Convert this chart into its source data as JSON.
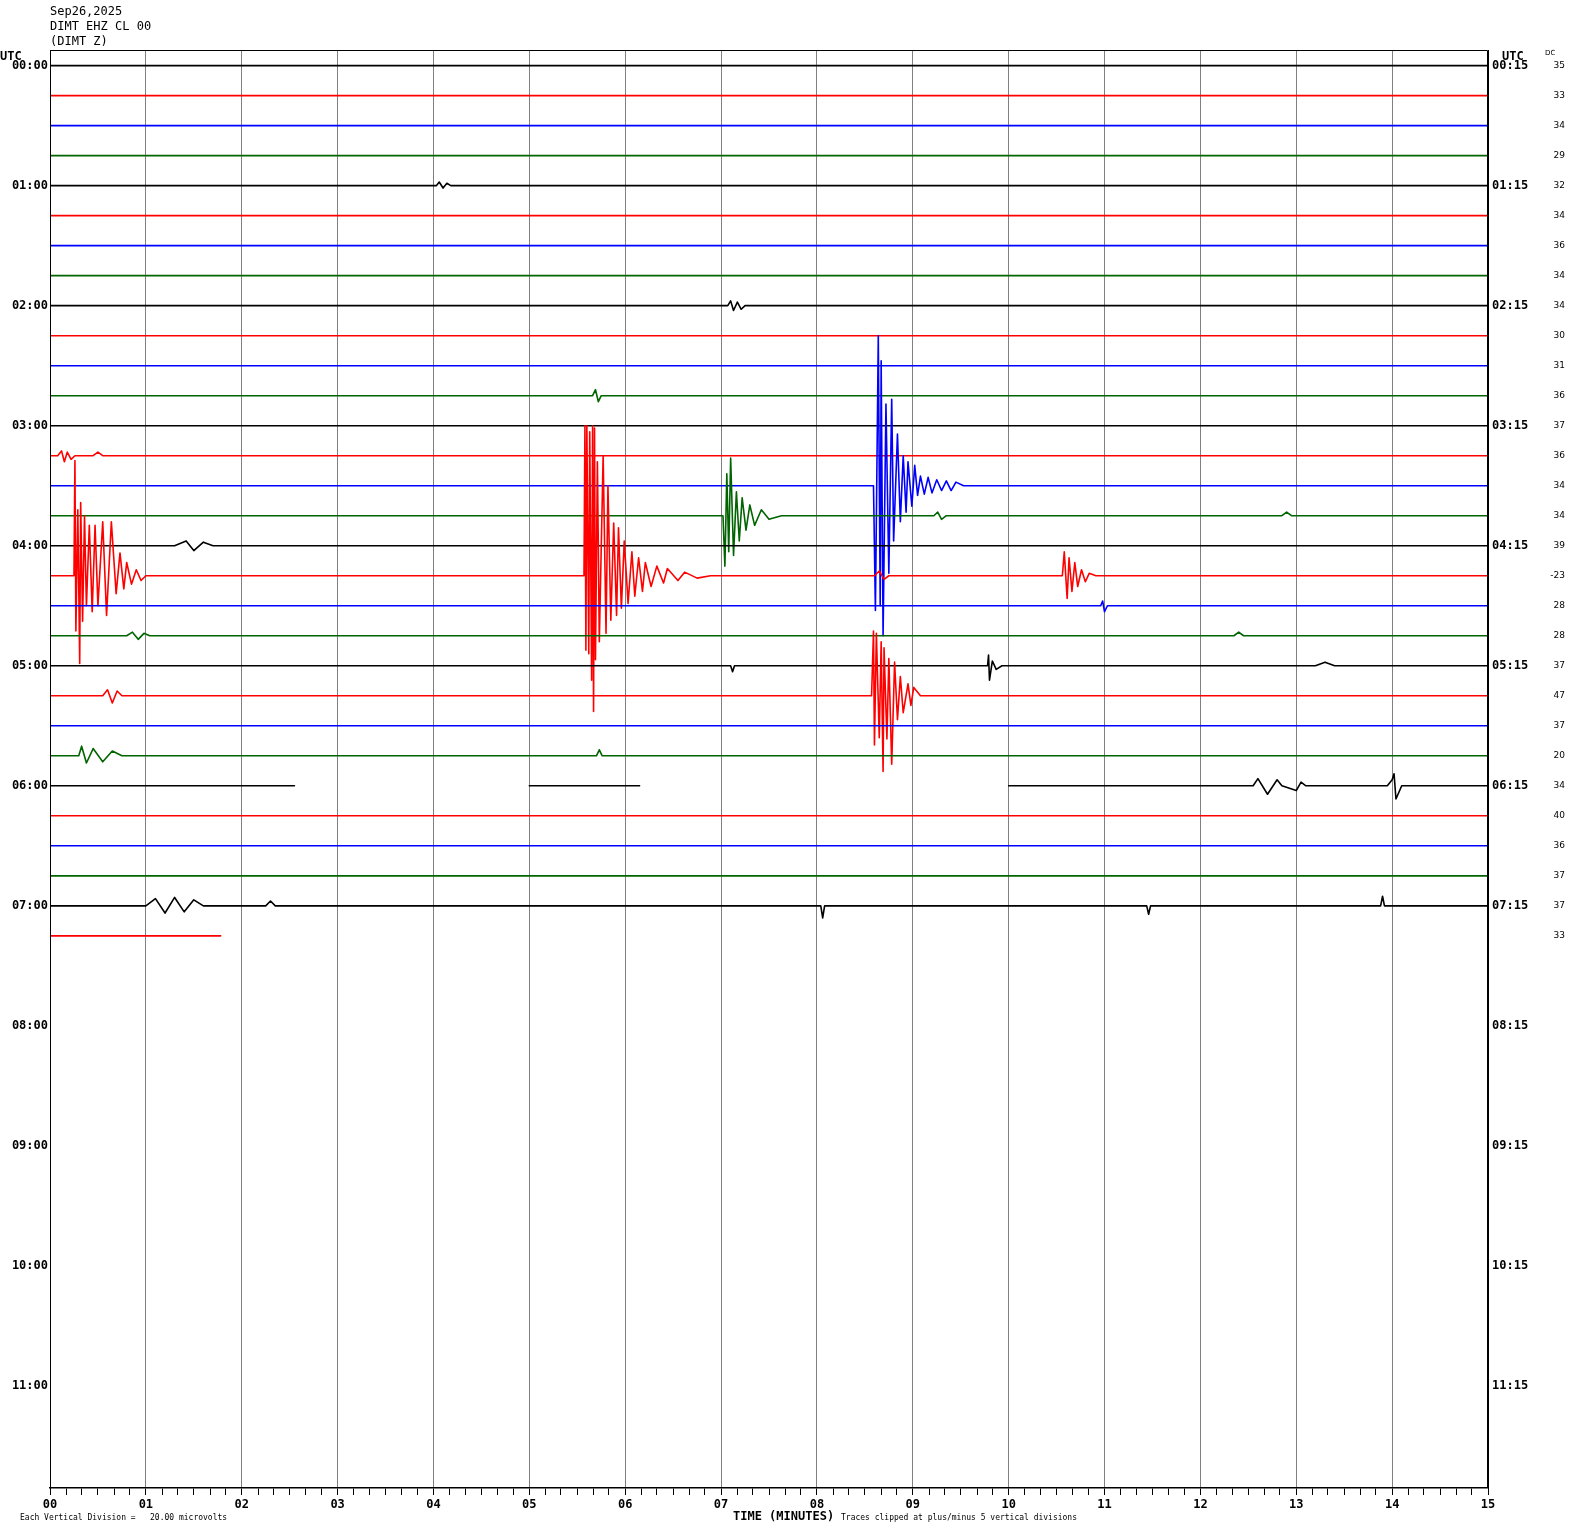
{
  "chart_data": {
    "type": "line",
    "title": "Sep26,2025",
    "subtitle": "DIMT EHZ CL 00",
    "annotations": [
      "(DIMT Z)",
      "Each Vertical Division =   20.00 microvolts",
      "Traces clipped at plus/minus 5 vertical divisions",
      "DC",
      "35",
      "33",
      "34",
      "29",
      "32",
      "34",
      "36",
      "34",
      "34",
      "30",
      "31",
      "36",
      "37",
      "36",
      "34",
      "34",
      "39",
      "-23",
      "28",
      "28",
      "37",
      "47",
      "37",
      "20",
      "34",
      "40",
      "36",
      "37",
      "37",
      "33"
    ],
    "xlabel": "TIME (MINUTES)",
    "ylabel": "UTC",
    "y2label": "UTC",
    "xlim": [
      0,
      15
    ],
    "xticks": [
      {
        "value": 0,
        "label": "00"
      },
      {
        "value": 0.17,
        "label": null
      },
      {
        "value": 0.33,
        "label": null
      },
      {
        "value": 0.5,
        "label": null
      },
      {
        "value": 0.67,
        "label": null
      },
      {
        "value": 0.83,
        "label": null
      },
      {
        "value": 1,
        "label": "01"
      },
      {
        "value": 1.17,
        "label": null
      },
      {
        "value": 1.33,
        "label": null
      },
      {
        "value": 1.5,
        "label": null
      },
      {
        "value": 1.67,
        "label": null
      },
      {
        "value": 1.83,
        "label": null
      },
      {
        "value": 2,
        "label": "02"
      },
      {
        "value": 2.17,
        "label": null
      },
      {
        "value": 2.33,
        "label": null
      },
      {
        "value": 2.5,
        "label": null
      },
      {
        "value": 2.67,
        "label": null
      },
      {
        "value": 2.83,
        "label": null
      },
      {
        "value": 3,
        "label": "03"
      },
      {
        "value": 3.17,
        "label": null
      },
      {
        "value": 3.33,
        "label": null
      },
      {
        "value": 3.5,
        "label": null
      },
      {
        "value": 3.67,
        "label": null
      },
      {
        "value": 3.83,
        "label": null
      },
      {
        "value": 4,
        "label": "04"
      },
      {
        "value": 4.17,
        "label": null
      },
      {
        "value": 4.33,
        "label": null
      },
      {
        "value": 4.5,
        "label": null
      },
      {
        "value": 4.67,
        "label": null
      },
      {
        "value": 4.83,
        "label": null
      },
      {
        "value": 5,
        "label": "05"
      },
      {
        "value": 5.17,
        "label": null
      },
      {
        "value": 5.33,
        "label": null
      },
      {
        "value": 5.5,
        "label": null
      },
      {
        "value": 5.67,
        "label": null
      },
      {
        "value": 5.83,
        "label": null
      },
      {
        "value": 6,
        "label": "06"
      },
      {
        "value": 6.17,
        "label": null
      },
      {
        "value": 6.33,
        "label": null
      },
      {
        "value": 6.5,
        "label": null
      },
      {
        "value": 6.67,
        "label": null
      },
      {
        "value": 6.83,
        "label": null
      },
      {
        "value": 7,
        "label": "07"
      },
      {
        "value": 7.17,
        "label": null
      },
      {
        "value": 7.33,
        "label": null
      },
      {
        "value": 7.5,
        "label": null
      },
      {
        "value": 7.67,
        "label": null
      },
      {
        "value": 7.83,
        "label": null
      },
      {
        "value": 8,
        "label": "08"
      },
      {
        "value": 8.17,
        "label": null
      },
      {
        "value": 8.33,
        "label": null
      },
      {
        "value": 8.5,
        "label": null
      },
      {
        "value": 8.67,
        "label": null
      },
      {
        "value": 8.83,
        "label": null
      },
      {
        "value": 9,
        "label": "09"
      },
      {
        "value": 9.17,
        "label": null
      },
      {
        "value": 9.33,
        "label": null
      },
      {
        "value": 9.5,
        "label": null
      },
      {
        "value": 9.67,
        "label": null
      },
      {
        "value": 9.83,
        "label": null
      },
      {
        "value": 10,
        "label": "10"
      },
      {
        "value": 10.17,
        "label": null
      },
      {
        "value": 10.33,
        "label": null
      },
      {
        "value": 10.5,
        "label": null
      },
      {
        "value": 10.67,
        "label": null
      },
      {
        "value": 10.83,
        "label": null
      },
      {
        "value": 11,
        "label": "11"
      },
      {
        "value": 11.17,
        "label": null
      },
      {
        "value": 11.33,
        "label": null
      },
      {
        "value": 11.5,
        "label": null
      },
      {
        "value": 11.67,
        "label": null
      },
      {
        "value": 11.83,
        "label": null
      },
      {
        "value": 12,
        "label": "12"
      },
      {
        "value": 12.17,
        "label": null
      },
      {
        "value": 12.33,
        "label": null
      },
      {
        "value": 12.5,
        "label": null
      },
      {
        "value": 12.67,
        "label": null
      },
      {
        "value": 12.83,
        "label": null
      },
      {
        "value": 13,
        "label": "13"
      },
      {
        "value": 13.17,
        "label": null
      },
      {
        "value": 13.33,
        "label": null
      },
      {
        "value": 13.5,
        "label": null
      },
      {
        "value": 13.67,
        "label": null
      },
      {
        "value": 13.83,
        "label": null
      },
      {
        "value": 14,
        "label": "14"
      },
      {
        "value": 14.17,
        "label": null
      },
      {
        "value": 14.33,
        "label": null
      },
      {
        "value": 14.5,
        "label": null
      },
      {
        "value": 14.67,
        "label": null
      },
      {
        "value": 14.83,
        "label": null
      },
      {
        "value": 15,
        "label": "15"
      }
    ],
    "ylim": [
      11.85,
      -0.13
    ],
    "yticks": [
      {
        "value": 0,
        "label": "00:00"
      },
      {
        "value": 1,
        "label": "01:00"
      },
      {
        "value": 2,
        "label": "02:00"
      },
      {
        "value": 3,
        "label": "03:00"
      },
      {
        "value": 4,
        "label": "04:00"
      },
      {
        "value": 5,
        "label": "05:00"
      },
      {
        "value": 6,
        "label": "06:00"
      },
      {
        "value": 7,
        "label": "07:00"
      },
      {
        "value": 8,
        "label": "08:00"
      },
      {
        "value": 9,
        "label": "09:00"
      },
      {
        "value": 10,
        "label": "10:00"
      },
      {
        "value": 11,
        "label": "11:00"
      }
    ],
    "y2lim": [
      12.1,
      0.12
    ],
    "y2ticks": [
      {
        "value": 0.25,
        "label": "00:15"
      },
      {
        "value": 1.25,
        "label": "01:15"
      },
      {
        "value": 2.25,
        "label": "02:15"
      },
      {
        "value": 3.25,
        "label": "03:15"
      },
      {
        "value": 4.25,
        "label": "04:15"
      },
      {
        "value": 5.25,
        "label": "05:15"
      },
      {
        "value": 6.25,
        "label": "06:15"
      },
      {
        "value": 7.25,
        "label": "07:15"
      },
      {
        "value": 8.25,
        "label": "08:15"
      },
      {
        "value": 9.25,
        "label": "09:15"
      },
      {
        "value": 10.25,
        "label": "10:15"
      },
      {
        "value": 11.25,
        "label": "11:15"
      }
    ],
    "grid": "x",
    "marker": "none",
    "line_style": "solid",
    "series": [
      {
        "color": "#000000",
        "x": [
          0,
          15
        ],
        "values": [
          0,
          0
        ]
      },
      {
        "color": "#ff0000",
        "x": [
          0,
          15
        ],
        "values": [
          0.25,
          0.25
        ]
      },
      {
        "color": "#0000ff",
        "x": [
          0,
          15
        ],
        "values": [
          0.5,
          0.5
        ]
      },
      {
        "color": "#006400",
        "x": [
          0,
          15
        ],
        "values": [
          0.75,
          0.75
        ]
      },
      {
        "color": "#000000",
        "x": [
          0,
          4.03,
          4.06,
          4.1,
          4.14,
          4.18,
          15
        ],
        "values": [
          1,
          1,
          0.97,
          1.02,
          0.98,
          1,
          1
        ]
      },
      {
        "color": "#ff0000",
        "x": [
          0,
          15
        ],
        "values": [
          1.25,
          1.25
        ]
      },
      {
        "color": "#0000ff",
        "x": [
          0,
          15
        ],
        "values": [
          1.5,
          1.5
        ]
      },
      {
        "color": "#006400",
        "x": [
          0,
          15
        ],
        "values": [
          1.75,
          1.75
        ]
      },
      {
        "color": "#000000",
        "x": [
          0,
          7.07,
          7.1,
          7.13,
          7.17,
          7.21,
          7.25,
          15
        ],
        "values": [
          2,
          2,
          1.96,
          2.04,
          1.97,
          2.03,
          2,
          2
        ]
      },
      {
        "color": "#ff0000",
        "x": [
          0,
          15
        ],
        "values": [
          2.25,
          2.25
        ]
      },
      {
        "color": "#0000ff",
        "x": [
          0,
          15
        ],
        "values": [
          2.5,
          2.5
        ]
      },
      {
        "color": "#006400",
        "x": [
          0,
          5.66,
          5.69,
          5.72,
          5.75,
          15
        ],
        "values": [
          2.75,
          2.75,
          2.7,
          2.8,
          2.75,
          2.75
        ]
      },
      {
        "color": "#000000",
        "x": [
          0,
          15
        ],
        "values": [
          3,
          3
        ]
      },
      {
        "color": "#ff0000",
        "x": [
          0,
          0.08,
          0.12,
          0.15,
          0.18,
          0.22,
          0.26,
          0.45,
          0.5,
          0.55,
          15
        ],
        "values": [
          3.25,
          3.25,
          3.21,
          3.3,
          3.22,
          3.28,
          3.25,
          3.25,
          3.22,
          3.25,
          3.25
        ]
      },
      {
        "color": "#0000ff",
        "x": [
          0,
          8.59,
          8.61,
          8.64,
          8.66,
          8.67,
          8.69,
          8.72,
          8.75,
          8.78,
          8.8,
          8.84,
          8.87,
          8.9,
          8.93,
          8.95,
          8.99,
          9.02,
          9.05,
          9.08,
          9.12,
          9.16,
          9.2,
          9.25,
          9.3,
          9.35,
          9.4,
          9.45,
          9.53,
          15
        ],
        "values": [
          3.5,
          3.5,
          4.54,
          2.25,
          4.5,
          2.46,
          4.75,
          2.82,
          4.23,
          2.78,
          3.96,
          3.07,
          3.8,
          3.25,
          3.72,
          3.3,
          3.67,
          3.33,
          3.58,
          3.42,
          3.57,
          3.43,
          3.56,
          3.45,
          3.54,
          3.46,
          3.54,
          3.47,
          3.5,
          3.5
        ]
      },
      {
        "color": "#006400",
        "x": [
          0,
          7.02,
          7.04,
          7.06,
          7.08,
          7.1,
          7.13,
          7.16,
          7.19,
          7.22,
          7.26,
          7.3,
          7.35,
          7.42,
          7.5,
          7.63,
          9.22,
          9.26,
          9.3,
          9.35,
          12.85,
          12.9,
          12.95,
          15
        ],
        "values": [
          3.75,
          3.75,
          4.17,
          3.4,
          4.05,
          3.27,
          4.08,
          3.55,
          3.96,
          3.6,
          3.87,
          3.66,
          3.83,
          3.7,
          3.78,
          3.75,
          3.75,
          3.72,
          3.78,
          3.75,
          3.75,
          3.72,
          3.75,
          3.75
        ]
      },
      {
        "color": "#000000",
        "x": [
          0,
          1.3,
          1.42,
          1.5,
          1.6,
          1.7,
          15
        ],
        "values": [
          4,
          4,
          3.96,
          4.04,
          3.97,
          4,
          4
        ]
      },
      {
        "color": "#ff0000",
        "x": [
          0,
          0.25,
          0.26,
          0.27,
          0.29,
          0.31,
          0.32,
          0.34,
          0.36,
          0.38,
          0.41,
          0.44,
          0.47,
          0.5,
          0.55,
          0.59,
          0.64,
          0.69,
          0.73,
          0.77,
          0.8,
          0.85,
          0.9,
          0.95,
          1.0,
          5.57,
          5.58,
          5.59,
          5.6,
          5.62,
          5.63,
          5.65,
          5.66,
          5.67,
          5.68,
          5.69,
          5.71,
          5.73,
          5.77,
          5.8,
          5.82,
          5.85,
          5.88,
          5.91,
          5.93,
          5.96,
          5.99,
          6.03,
          6.07,
          6.1,
          6.14,
          6.18,
          6.21,
          6.27,
          6.33,
          6.4,
          6.44,
          6.55,
          6.62,
          6.75,
          6.89,
          8.6,
          8.65,
          8.7,
          8.75,
          10.56,
          10.58,
          10.61,
          10.63,
          10.66,
          10.69,
          10.72,
          10.76,
          10.8,
          10.84,
          10.91,
          15
        ],
        "values": [
          4.25,
          4.25,
          3.29,
          4.71,
          3.7,
          4.98,
          3.64,
          4.63,
          3.75,
          4.5,
          3.83,
          4.55,
          3.83,
          4.5,
          3.8,
          4.58,
          3.8,
          4.4,
          4.06,
          4.36,
          4.14,
          4.32,
          4.2,
          4.29,
          4.25,
          4.25,
          3.0,
          4.87,
          3.0,
          4.9,
          3.05,
          5.12,
          3.0,
          5.38,
          3.02,
          4.95,
          3.3,
          4.8,
          3.25,
          4.73,
          3.5,
          4.62,
          3.81,
          4.58,
          3.85,
          4.52,
          3.96,
          4.48,
          4.05,
          4.42,
          4.1,
          4.38,
          4.14,
          4.34,
          4.17,
          4.31,
          4.19,
          4.29,
          4.22,
          4.27,
          4.25,
          4.25,
          4.21,
          4.28,
          4.25,
          4.25,
          4.05,
          4.44,
          4.1,
          4.38,
          4.14,
          4.34,
          4.2,
          4.3,
          4.23,
          4.25,
          4.25
        ]
      },
      {
        "color": "#0000ff",
        "x": [
          0,
          10.96,
          10.98,
          11.0,
          11.03,
          15
        ],
        "values": [
          4.5,
          4.5,
          4.46,
          4.55,
          4.5,
          4.5
        ]
      },
      {
        "color": "#006400",
        "x": [
          0,
          0.8,
          0.86,
          0.92,
          0.98,
          1.04,
          12.35,
          12.4,
          12.45,
          15
        ],
        "values": [
          4.75,
          4.75,
          4.72,
          4.78,
          4.73,
          4.75,
          4.75,
          4.72,
          4.75,
          4.75
        ]
      },
      {
        "color": "#000000",
        "x": [
          0,
          7.1,
          7.12,
          7.14,
          9.78,
          9.79,
          9.8,
          9.83,
          9.87,
          9.93,
          13.2,
          13.3,
          13.4,
          15
        ],
        "values": [
          5,
          5,
          5.05,
          5,
          5,
          4.91,
          5.12,
          4.96,
          5.03,
          5,
          5,
          4.97,
          5,
          5
        ]
      },
      {
        "color": "#ff0000",
        "x": [
          0,
          0.55,
          0.6,
          0.65,
          0.7,
          0.75,
          8.57,
          8.59,
          8.6,
          8.62,
          8.65,
          8.67,
          8.69,
          8.7,
          8.73,
          8.75,
          8.78,
          8.81,
          8.84,
          8.87,
          8.9,
          8.95,
          8.98,
          9.01,
          9.08,
          15
        ],
        "values": [
          5.25,
          5.25,
          5.2,
          5.31,
          5.21,
          5.25,
          5.25,
          4.71,
          5.66,
          4.73,
          5.6,
          4.8,
          5.88,
          4.85,
          5.61,
          4.94,
          5.82,
          4.97,
          5.45,
          5.09,
          5.39,
          5.15,
          5.33,
          5.18,
          5.25,
          5.25
        ]
      },
      {
        "color": "#0000ff",
        "x": [
          0,
          15
        ],
        "values": [
          5.5,
          5.5
        ]
      },
      {
        "color": "#006400",
        "x": [
          0,
          0.3,
          0.33,
          0.38,
          0.45,
          0.55,
          0.65,
          0.75,
          5.7,
          5.73,
          5.76,
          15
        ],
        "values": [
          5.75,
          5.75,
          5.67,
          5.81,
          5.69,
          5.8,
          5.71,
          5.75,
          5.75,
          5.7,
          5.75,
          5.75
        ]
      },
      {
        "color": "#000000",
        "x": [
          0,
          2.55,
          2.56,
          5.0,
          6.15,
          6.16,
          10.0,
          12.55,
          12.6,
          12.7,
          12.8,
          12.85,
          13.0,
          13.05,
          13.1,
          13.95,
          14.0,
          14.02,
          14.04,
          14.1,
          15
        ],
        "values": [
          6,
          6,
          null,
          6,
          6,
          null,
          6,
          6,
          5.94,
          6.07,
          5.95,
          6,
          6.04,
          5.97,
          6,
          6,
          5.95,
          5.9,
          6.11,
          6,
          6
        ]
      },
      {
        "color": "#ff0000",
        "x": [
          0,
          15
        ],
        "values": [
          6.25,
          6.25
        ]
      },
      {
        "color": "#0000ff",
        "x": [
          0,
          15
        ],
        "values": [
          6.5,
          6.5
        ]
      },
      {
        "color": "#006400",
        "x": [
          0,
          15
        ],
        "values": [
          6.75,
          6.75
        ]
      },
      {
        "color": "#000000",
        "x": [
          0,
          1.0,
          1.1,
          1.2,
          1.3,
          1.4,
          1.5,
          1.6,
          2.25,
          2.3,
          2.35,
          8.04,
          8.06,
          8.08,
          11.44,
          11.46,
          11.48,
          13.88,
          13.9,
          13.92,
          15
        ],
        "values": [
          7,
          7,
          6.94,
          7.06,
          6.93,
          7.05,
          6.95,
          7,
          7,
          6.96,
          7,
          7,
          7.1,
          7,
          7,
          7.07,
          7,
          7,
          6.92,
          7,
          7
        ]
      },
      {
        "color": "#ff0000",
        "x": [
          0,
          1.78
        ],
        "values": [
          7.25,
          7.25
        ]
      }
    ]
  }
}
